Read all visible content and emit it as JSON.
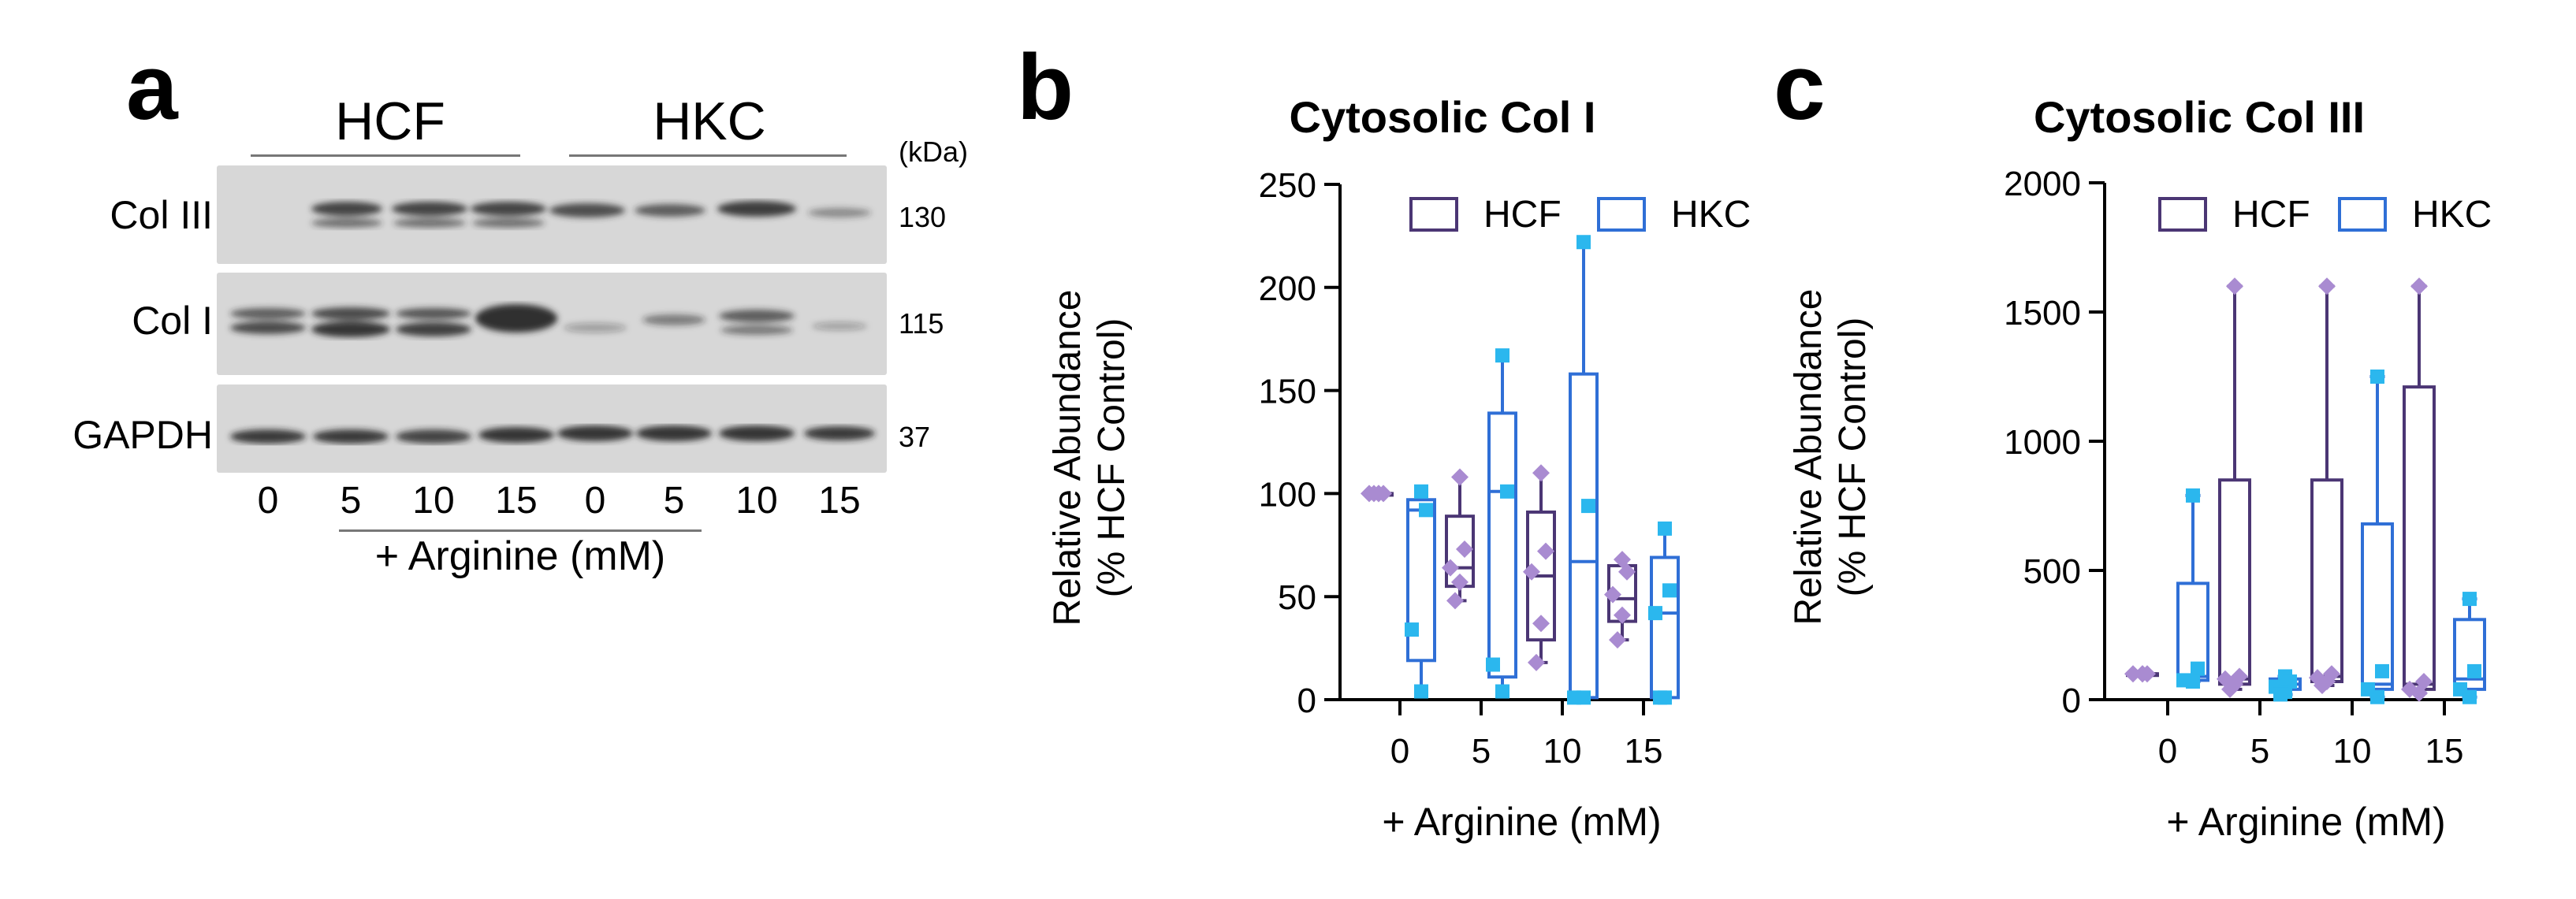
{
  "panel_a": {
    "label": "a",
    "group_labels": [
      "HCF",
      "HKC"
    ],
    "kda_header": "(kDa)",
    "rows": [
      {
        "name": "Col III",
        "kda": "130"
      },
      {
        "name": "Col I",
        "kda": "115"
      },
      {
        "name": "GAPDH",
        "kda": "37"
      }
    ],
    "lanes": [
      "0",
      "5",
      "10",
      "15",
      "0",
      "5",
      "10",
      "15"
    ],
    "xlabel": "+ Arginine (mM)"
  },
  "panel_b": {
    "label": "b"
  },
  "panel_c": {
    "label": "c"
  },
  "chart_data": [
    {
      "type": "box",
      "title": "Cytosolic Col I",
      "xlabel": "+ Arginine (mM)",
      "ylabel": [
        "Relative Abundance",
        "(% HCF Control)"
      ],
      "categories": [
        "0",
        "5",
        "10",
        "15"
      ],
      "ylim": [
        0,
        250
      ],
      "yticks": [
        0,
        50,
        100,
        150,
        200,
        250
      ],
      "legend": [
        "HCF",
        "HKC"
      ],
      "legend_position": "top",
      "colors": {
        "HCF": "#4b3674",
        "HCF_points": "#a98bd1",
        "HKC": "#2f6fd6",
        "HKC_points": "#2bb7ee"
      },
      "series": [
        {
          "name": "HCF",
          "boxes": [
            {
              "min": 100,
              "q1": 100,
              "median": 100,
              "q3": 100,
              "max": 100,
              "points": [
                100,
                100,
                100,
                100,
                100
              ]
            },
            {
              "min": 48,
              "q1": 55,
              "median": 64,
              "q3": 89,
              "max": 108,
              "points": [
                108,
                73,
                64,
                57,
                48
              ]
            },
            {
              "min": 18,
              "q1": 29,
              "median": 60,
              "q3": 91,
              "max": 110,
              "points": [
                110,
                72,
                62,
                37,
                18
              ]
            },
            {
              "min": 29,
              "q1": 38,
              "median": 49,
              "q3": 65,
              "max": 68,
              "points": [
                68,
                62,
                51,
                41,
                29
              ]
            }
          ]
        },
        {
          "name": "HKC",
          "boxes": [
            {
              "min": 4,
              "q1": 19,
              "median": 92,
              "q3": 97,
              "max": 101,
              "points": [
                101,
                92,
                34,
                4
              ]
            },
            {
              "min": 4,
              "q1": 11,
              "median": 101,
              "q3": 139,
              "max": 167,
              "points": [
                167,
                101,
                17,
                4
              ]
            },
            {
              "min": 1,
              "q1": 1,
              "median": 67,
              "q3": 158,
              "max": 222,
              "points": [
                222,
                94,
                1,
                1
              ]
            },
            {
              "min": 1,
              "q1": 1,
              "median": 42,
              "q3": 69,
              "max": 83,
              "points": [
                83,
                53,
                42,
                1,
                1
              ]
            }
          ]
        }
      ]
    },
    {
      "type": "box",
      "title": "Cytosolic Col III",
      "xlabel": "+ Arginine (mM)",
      "ylabel": [
        "Relative Abundance",
        "(% HCF Control)"
      ],
      "categories": [
        "0",
        "5",
        "10",
        "15"
      ],
      "ylim": [
        0,
        2000
      ],
      "yticks": [
        0,
        500,
        1000,
        1500,
        2000
      ],
      "legend": [
        "HCF",
        "HKC"
      ],
      "legend_position": "top",
      "colors": {
        "HCF": "#4b3674",
        "HCF_points": "#a98bd1",
        "HKC": "#2f6fd6",
        "HKC_points": "#2bb7ee"
      },
      "series": [
        {
          "name": "HCF",
          "boxes": [
            {
              "min": 100,
              "q1": 100,
              "median": 100,
              "q3": 100,
              "max": 100,
              "points": [
                100,
                100,
                100,
                100
              ]
            },
            {
              "min": 40,
              "q1": 60,
              "median": 80,
              "q3": 850,
              "max": 1600,
              "points": [
                1600,
                90,
                80,
                60,
                40
              ]
            },
            {
              "min": 55,
              "q1": 70,
              "median": 90,
              "q3": 850,
              "max": 1600,
              "points": [
                1600,
                100,
                85,
                70,
                55
              ]
            },
            {
              "min": 25,
              "q1": 40,
              "median": 60,
              "q3": 1210,
              "max": 1600,
              "points": [
                1600,
                70,
                40,
                25
              ]
            }
          ]
        },
        {
          "name": "HKC",
          "boxes": [
            {
              "min": 70,
              "q1": 75,
              "median": 90,
              "q3": 450,
              "max": 790,
              "points": [
                790,
                120,
                75,
                70
              ]
            },
            {
              "min": 20,
              "q1": 40,
              "median": 60,
              "q3": 80,
              "max": 90,
              "points": [
                90,
                70,
                50,
                30,
                20
              ]
            },
            {
              "min": 10,
              "q1": 40,
              "median": 60,
              "q3": 680,
              "max": 1250,
              "points": [
                1250,
                110,
                40,
                10
              ]
            },
            {
              "min": 10,
              "q1": 40,
              "median": 80,
              "q3": 310,
              "max": 390,
              "points": [
                390,
                110,
                40,
                10
              ]
            }
          ]
        }
      ]
    }
  ]
}
